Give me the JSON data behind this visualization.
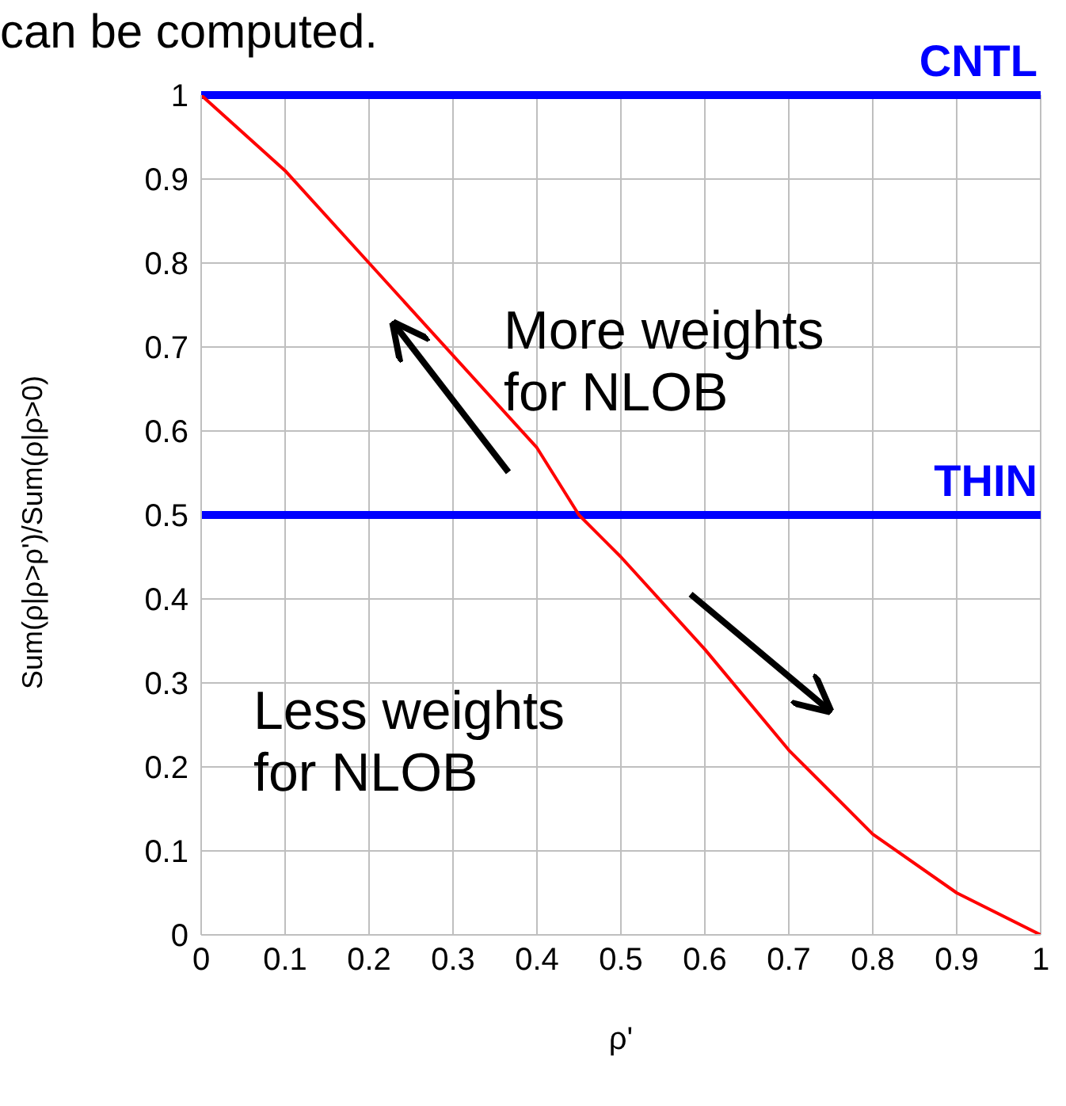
{
  "chart_data": {
    "type": "line",
    "xlabel": "ρ'",
    "ylabel": "Sum(ρ|ρ>ρ')/Sum(ρ|ρ>0)",
    "x": [
      0,
      0.1,
      0.2,
      0.3,
      0.4,
      0.45,
      0.5,
      0.6,
      0.7,
      0.8,
      0.9,
      1
    ],
    "series": [
      {
        "color": "#ff0000",
        "values": [
          1,
          0.91,
          0.8,
          0.69,
          0.58,
          0.5,
          0.45,
          0.34,
          0.22,
          0.12,
          0.05,
          0
        ]
      }
    ],
    "xlim": [
      0,
      1
    ],
    "xticks": [
      0,
      0.1,
      0.2,
      0.3,
      0.4,
      0.5,
      0.6,
      0.7,
      0.8,
      0.9,
      1
    ],
    "ylim": [
      0,
      1
    ],
    "yticks": [
      0,
      0.1,
      0.2,
      0.3,
      0.4,
      0.5,
      0.6,
      0.7,
      0.8,
      0.9,
      1
    ],
    "grid": true,
    "marker": "none",
    "line_style": "solid",
    "ref_lines": [
      {
        "axis": "y",
        "value": 1,
        "label": "CNTL",
        "color": "#0000ff"
      },
      {
        "axis": "y",
        "value": 0.5,
        "label": "THIN",
        "color": "#0000ff"
      }
    ],
    "annotations": [
      "can be computed.",
      "More weights\nfor NLOB",
      "Less weights\nfor NLOB"
    ]
  }
}
